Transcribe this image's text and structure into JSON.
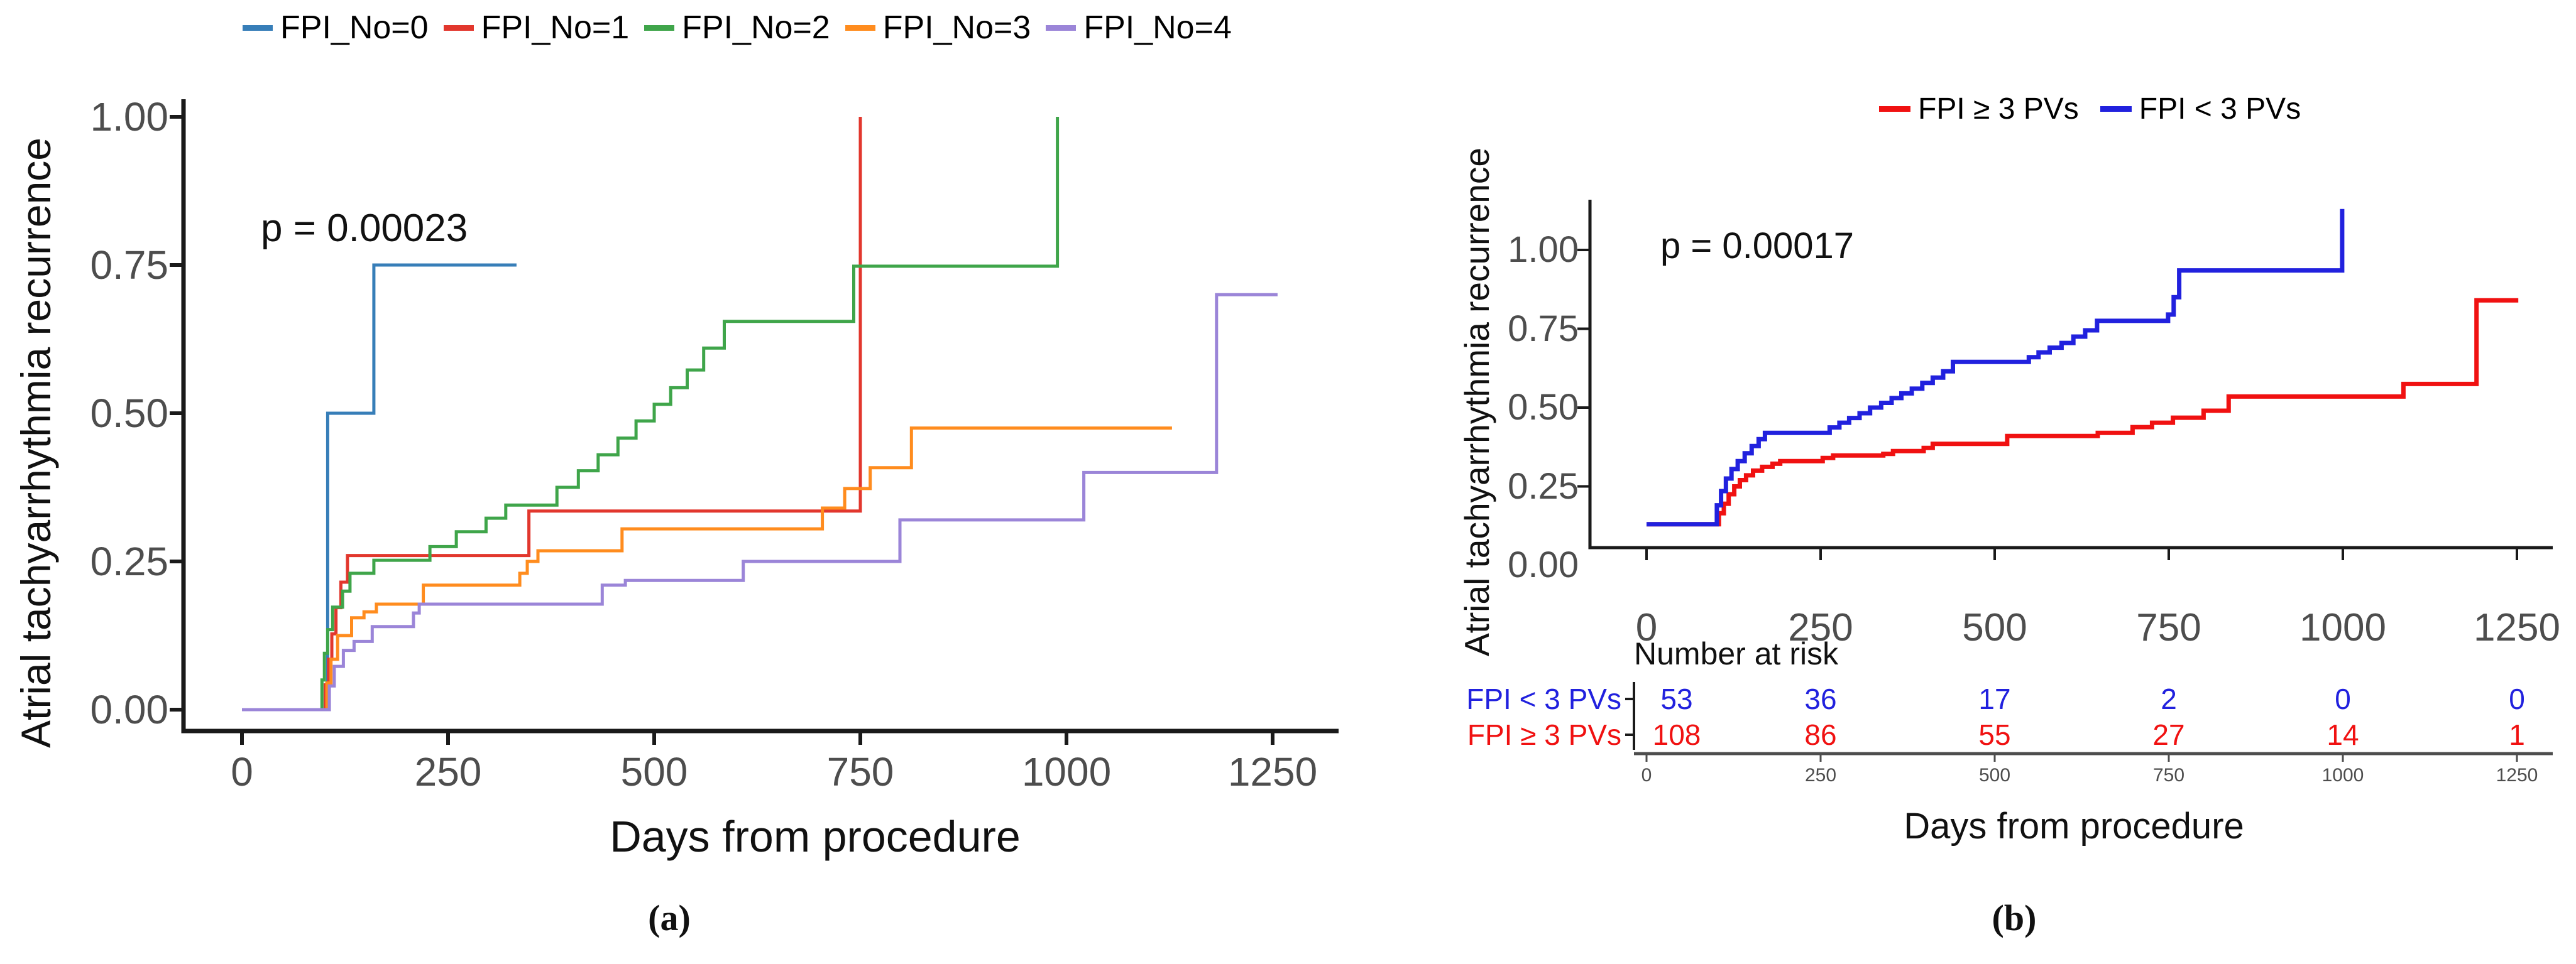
{
  "figure": {
    "panel_a": {
      "caption": "(a)",
      "p_value": "p = 0.00023",
      "x_label": "Days from procedure",
      "y_label": "Atrial tachyarrhythmia recurrence",
      "x_tick_labels": [
        "0",
        "250",
        "500",
        "750",
        "1000",
        "1250"
      ],
      "x_tick_values": [
        0,
        250,
        500,
        750,
        1000,
        1250
      ],
      "y_tick_labels": [
        "0.00",
        "0.25",
        "0.50",
        "0.75",
        "1.00"
      ],
      "y_tick_values": [
        0,
        0.25,
        0.5,
        0.75,
        1
      ],
      "legend": [
        {
          "label": "FPI_No=0",
          "color": "#377EB8"
        },
        {
          "label": "FPI_No=1",
          "color": "#E2372D"
        },
        {
          "label": "FPI_No=2",
          "color": "#3FA54A"
        },
        {
          "label": "FPI_No=3",
          "color": "#FF8C1E"
        },
        {
          "label": "FPI_No=4",
          "color": "#9B85D8"
        }
      ]
    },
    "panel_b": {
      "caption": "(b)",
      "p_value": "p = 0.00017",
      "x_label": "Days from procedure",
      "y_label": "Atrial tachyarrhythmia recurrence",
      "x_tick_labels": [
        "0",
        "250",
        "500",
        "750",
        "1000",
        "1250"
      ],
      "x_tick_values": [
        0,
        250,
        500,
        750,
        1000,
        1250
      ],
      "y_tick_labels": [
        "0.00",
        "0.25",
        "0.50",
        "0.75",
        "1.00"
      ],
      "y_tick_values": [
        0,
        0.25,
        0.5,
        0.75,
        1
      ],
      "legend": [
        {
          "label": "FPI ≥ 3 PVs",
          "color": "#F01111"
        },
        {
          "label": "FPI < 3 PVs",
          "color": "#2121DE"
        }
      ]
    },
    "colors": {
      "axis": "#1A1A1A",
      "tick_text": "#4D4D4D",
      "risk_axis": "#4D4D4D"
    }
  },
  "chart_data": [
    {
      "type": "line",
      "subtype": "step",
      "panel": "a",
      "title": "",
      "xlabel": "Days from procedure",
      "ylabel": "Atrial tachyarrhythmia recurrence",
      "xlim": [
        0,
        1300
      ],
      "ylim": [
        0,
        1.0
      ],
      "grid": false,
      "legend_position": "top",
      "p_value": "p = 0.00023",
      "series": [
        {
          "name": "FPI_No=0",
          "color": "#377EB8",
          "points": [
            [
              0,
              0
            ],
            [
              101,
              0
            ],
            [
              104,
              0.5
            ],
            [
              157,
              0.5
            ],
            [
              160,
              0.75
            ],
            [
              333,
              0.75
            ]
          ]
        },
        {
          "name": "FPI_No=1",
          "color": "#E2372D",
          "points": [
            [
              0,
              0
            ],
            [
              98,
              0
            ],
            [
              101,
              0.042
            ],
            [
              105,
              0.085
            ],
            [
              109,
              0.128
            ],
            [
              114,
              0.172
            ],
            [
              120,
              0.215
            ],
            [
              128,
              0.26
            ],
            [
              344,
              0.26
            ],
            [
              348,
              0.335
            ],
            [
              748,
              0.335
            ],
            [
              750,
              1.0
            ]
          ]
        },
        {
          "name": "FPI_No=2",
          "color": "#3FA54A",
          "points": [
            [
              0,
              0
            ],
            [
              94,
              0
            ],
            [
              97,
              0.05
            ],
            [
              100,
              0.095
            ],
            [
              104,
              0.135
            ],
            [
              110,
              0.173
            ],
            [
              122,
              0.2
            ],
            [
              131,
              0.23
            ],
            [
              160,
              0.252
            ],
            [
              228,
              0.275
            ],
            [
              260,
              0.3
            ],
            [
              296,
              0.323
            ],
            [
              320,
              0.345
            ],
            [
              382,
              0.375
            ],
            [
              408,
              0.403
            ],
            [
              432,
              0.43
            ],
            [
              456,
              0.458
            ],
            [
              478,
              0.487
            ],
            [
              500,
              0.515
            ],
            [
              520,
              0.543
            ],
            [
              540,
              0.573
            ],
            [
              560,
              0.61
            ],
            [
              585,
              0.655
            ],
            [
              738,
              0.655
            ],
            [
              742,
              0.748
            ],
            [
              986,
              0.748
            ],
            [
              989,
              1.0
            ]
          ]
        },
        {
          "name": "FPI_No=3",
          "color": "#FF8C1E",
          "points": [
            [
              0,
              0
            ],
            [
              99,
              0
            ],
            [
              103,
              0.045
            ],
            [
              108,
              0.085
            ],
            [
              116,
              0.125
            ],
            [
              133,
              0.155
            ],
            [
              148,
              0.165
            ],
            [
              163,
              0.178
            ],
            [
              220,
              0.21
            ],
            [
              332,
              0.21
            ],
            [
              337,
              0.23
            ],
            [
              346,
              0.25
            ],
            [
              359,
              0.268
            ],
            [
              455,
              0.268
            ],
            [
              461,
              0.305
            ],
            [
              697,
              0.305
            ],
            [
              704,
              0.34
            ],
            [
              731,
              0.373
            ],
            [
              762,
              0.408
            ],
            [
              812,
              0.475
            ],
            [
              1128,
              0.475
            ]
          ]
        },
        {
          "name": "FPI_No=4",
          "color": "#9B85D8",
          "points": [
            [
              0,
              0
            ],
            [
              100,
              0
            ],
            [
              106,
              0.04
            ],
            [
              112,
              0.073
            ],
            [
              123,
              0.1
            ],
            [
              136,
              0.115
            ],
            [
              158,
              0.14
            ],
            [
              208,
              0.163
            ],
            [
              215,
              0.178
            ],
            [
              430,
              0.178
            ],
            [
              437,
              0.21
            ],
            [
              465,
              0.218
            ],
            [
              600,
              0.218
            ],
            [
              608,
              0.25
            ],
            [
              790,
              0.25
            ],
            [
              798,
              0.32
            ],
            [
              1015,
              0.32
            ],
            [
              1021,
              0.4
            ],
            [
              1177,
              0.4
            ],
            [
              1182,
              0.7
            ],
            [
              1256,
              0.7
            ]
          ]
        }
      ]
    },
    {
      "type": "line",
      "subtype": "step",
      "panel": "b",
      "title": "",
      "xlabel": "Days from procedure",
      "ylabel": "Atrial tachyarrhythmia recurrence",
      "xlim": [
        0,
        1250
      ],
      "ylim": [
        0,
        1.15
      ],
      "grid": false,
      "legend_position": "top",
      "p_value": "p = 0.00017",
      "series": [
        {
          "name": "FPI ≥ 3 PVs",
          "color": "#F01111",
          "points": [
            [
              0,
              0.13
            ],
            [
              98,
              0.13
            ],
            [
              104,
              0.165
            ],
            [
              111,
              0.195
            ],
            [
              118,
              0.225
            ],
            [
              126,
              0.25
            ],
            [
              134,
              0.27
            ],
            [
              143,
              0.285
            ],
            [
              153,
              0.3
            ],
            [
              166,
              0.312
            ],
            [
              181,
              0.322
            ],
            [
              192,
              0.33
            ],
            [
              253,
              0.34
            ],
            [
              268,
              0.348
            ],
            [
              340,
              0.353
            ],
            [
              354,
              0.362
            ],
            [
              398,
              0.372
            ],
            [
              411,
              0.385
            ],
            [
              518,
              0.41
            ],
            [
              648,
              0.42
            ],
            [
              698,
              0.438
            ],
            [
              726,
              0.452
            ],
            [
              756,
              0.468
            ],
            [
              800,
              0.49
            ],
            [
              836,
              0.535
            ],
            [
              1082,
              0.535
            ],
            [
              1087,
              0.575
            ],
            [
              1186,
              0.575
            ],
            [
              1192,
              0.84
            ],
            [
              1252,
              0.84
            ]
          ]
        },
        {
          "name": "FPI < 3 PVs",
          "color": "#2121DE",
          "points": [
            [
              0,
              0.13
            ],
            [
              96,
              0.13
            ],
            [
              101,
              0.19
            ],
            [
              107,
              0.235
            ],
            [
              114,
              0.275
            ],
            [
              122,
              0.305
            ],
            [
              131,
              0.33
            ],
            [
              141,
              0.355
            ],
            [
              151,
              0.378
            ],
            [
              161,
              0.4
            ],
            [
              170,
              0.42
            ],
            [
              254,
              0.42
            ],
            [
              263,
              0.437
            ],
            [
              277,
              0.452
            ],
            [
              291,
              0.467
            ],
            [
              306,
              0.482
            ],
            [
              321,
              0.5
            ],
            [
              337,
              0.515
            ],
            [
              352,
              0.53
            ],
            [
              366,
              0.545
            ],
            [
              381,
              0.56
            ],
            [
              396,
              0.578
            ],
            [
              411,
              0.595
            ],
            [
              426,
              0.615
            ],
            [
              440,
              0.645
            ],
            [
              538,
              0.645
            ],
            [
              549,
              0.66
            ],
            [
              563,
              0.675
            ],
            [
              579,
              0.69
            ],
            [
              596,
              0.705
            ],
            [
              613,
              0.725
            ],
            [
              630,
              0.745
            ],
            [
              647,
              0.775
            ],
            [
              741,
              0.775
            ],
            [
              749,
              0.795
            ],
            [
              757,
              0.85
            ],
            [
              765,
              0.935
            ],
            [
              993,
              0.935
            ],
            [
              999,
              1.13
            ]
          ]
        }
      ],
      "number_at_risk": {
        "title": "Number at risk",
        "columns": [
          0,
          250,
          500,
          750,
          1000,
          1250
        ],
        "rows": [
          {
            "label": "FPI < 3 PVs",
            "color": "#2121DE",
            "values": [
              "53",
              "36",
              "17",
              "2",
              "0",
              "0"
            ]
          },
          {
            "label": "FPI ≥ 3 PVs",
            "color": "#F01111",
            "values": [
              "108",
              "86",
              "55",
              "27",
              "14",
              "1"
            ]
          }
        ]
      }
    }
  ]
}
